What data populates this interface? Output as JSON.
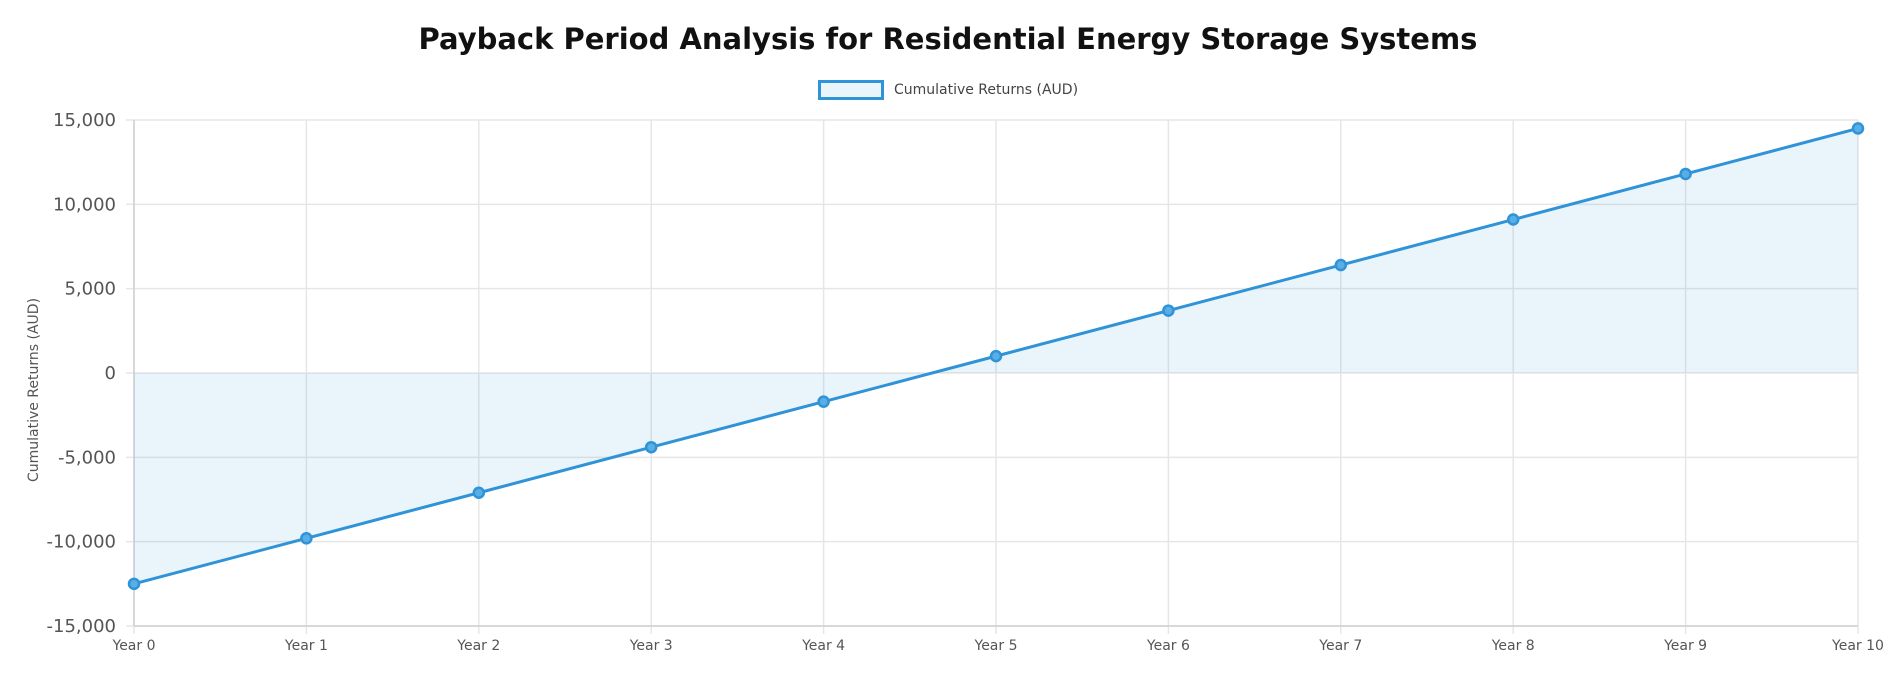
{
  "chart_data": {
    "type": "area",
    "title": "Payback Period Analysis for Residential Energy Storage Systems",
    "ylabel": "Cumulative Returns (AUD)",
    "xlabel": "",
    "ylim": [
      -15000,
      15000
    ],
    "y_ticks": [
      15000,
      10000,
      5000,
      0,
      -5000,
      -10000,
      -15000
    ],
    "y_tick_labels": [
      "15,000",
      "10,000",
      "5,000",
      "0",
      "-5,000",
      "-10,000",
      "-15,000"
    ],
    "categories": [
      "Year 0",
      "Year 1",
      "Year 2",
      "Year 3",
      "Year 4",
      "Year 5",
      "Year 6",
      "Year 7",
      "Year 8",
      "Year 9",
      "Year 10"
    ],
    "series": [
      {
        "name": "Cumulative Returns (AUD)",
        "values": [
          -12500,
          -9800,
          -7100,
          -4400,
          -1700,
          1000,
          3700,
          6400,
          9100,
          11800,
          14500
        ]
      }
    ],
    "legend": "top-center",
    "grid": true,
    "colors": {
      "line": "#2f93d8",
      "fill": "rgba(52,152,219,0.1)",
      "grid": "#e6e6e6"
    }
  }
}
